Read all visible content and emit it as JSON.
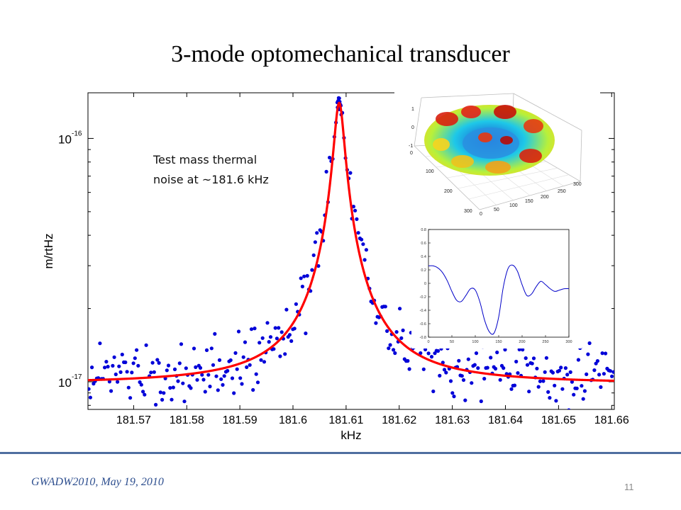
{
  "slide": {
    "title": "3-mode optomechanical transducer",
    "footer_left": "GWADW2010, May 19, 2010",
    "page_number": "11"
  },
  "annotation": {
    "line1": "Test mass thermal",
    "line2": "noise at ~181.6 kHz"
  },
  "colors": {
    "fit": "#ff0000",
    "points": "#0000d8",
    "footer_line": "#4f6f9f",
    "footer_text": "#2e4f8f"
  },
  "chart_data": [
    {
      "type": "scatter",
      "title": "",
      "xlabel": "kHz",
      "ylabel": "m/rtHz",
      "yscale": "log",
      "xlim": [
        181.5614,
        181.6605
      ],
      "ylim": [
        7.7e-18,
        1.54e-16
      ],
      "xticks": [
        181.57,
        181.58,
        181.59,
        181.6,
        181.61,
        181.62,
        181.63,
        181.64,
        181.65,
        181.66
      ],
      "xtick_labels": [
        "181.57",
        "181.58",
        "181.59",
        "181.6",
        "181.61",
        "181.62",
        "181.63",
        "181.64",
        "181.65",
        "181.66"
      ],
      "yticks_major": [
        1e-17,
        1e-16
      ],
      "ytick_labels": [
        {
          "base": "10",
          "exp": "-17"
        },
        {
          "base": "10",
          "exp": "-16"
        }
      ],
      "grid": false,
      "series": [
        {
          "role": "measured",
          "marker": "dot",
          "color": "#0000d8",
          "peak": {
            "x": 181.6087,
            "y": 1.45e-16
          },
          "baseline": 1e-17,
          "count": 330
        },
        {
          "role": "fit",
          "type": "line",
          "color": "#ff0000",
          "peak": {
            "x": 181.6087,
            "y": 1.4e-16
          },
          "baseline": 9.8e-18,
          "halfwidth_khz": 0.0009
        }
      ]
    },
    {
      "type": "surface",
      "description_role": "inset-3d-mode-shape",
      "xticks": [
        0,
        50,
        100,
        150,
        200,
        250,
        300
      ],
      "yticks": [
        0,
        100,
        200,
        300
      ],
      "zticks": [
        -1,
        0,
        1
      ],
      "zlim": [
        -1,
        1
      ]
    },
    {
      "type": "line",
      "description_role": "inset-mode-profile",
      "color": "#0000c8",
      "xlim": [
        0,
        300
      ],
      "ylim": [
        -0.8,
        0.8
      ],
      "xticks": [
        0,
        50,
        100,
        150,
        200,
        250,
        300
      ],
      "yticks": [
        -0.8,
        -0.6,
        -0.4,
        -0.2,
        0,
        0.2,
        0.4,
        0.6,
        0.8
      ],
      "x": [
        0,
        10,
        20,
        30,
        40,
        50,
        60,
        70,
        80,
        90,
        100,
        110,
        120,
        130,
        140,
        150,
        160,
        170,
        180,
        190,
        200,
        210,
        220,
        230,
        240,
        250,
        260,
        270,
        280,
        290,
        300
      ],
      "y": [
        0.26,
        0.26,
        0.23,
        0.16,
        0.04,
        -0.12,
        -0.25,
        -0.27,
        -0.18,
        -0.08,
        -0.1,
        -0.28,
        -0.55,
        -0.72,
        -0.74,
        -0.5,
        -0.05,
        0.22,
        0.27,
        0.18,
        -0.02,
        -0.18,
        -0.16,
        -0.05,
        0.03,
        -0.02,
        -0.08,
        -0.12,
        -0.1,
        -0.08,
        -0.08
      ]
    }
  ]
}
